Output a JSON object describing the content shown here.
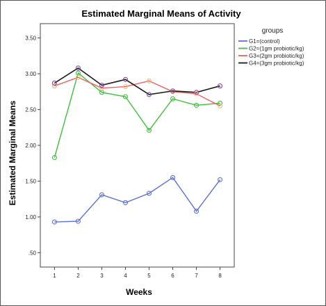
{
  "chart_data": {
    "type": "line",
    "title": "Estimated Marginal Means of Activity",
    "xlabel": "Weeks",
    "ylabel": "Estimated Marginal Means",
    "x": [
      1,
      2,
      3,
      4,
      5,
      6,
      7,
      8
    ],
    "x_tick_labels": [
      "1",
      "2",
      "3",
      "4",
      "5",
      "6",
      "7",
      "8"
    ],
    "xlim": [
      0.4,
      8.6
    ],
    "ylim": [
      0.3,
      3.7
    ],
    "y_ticks": [
      0.5,
      1.0,
      1.5,
      2.0,
      2.5,
      3.0,
      3.5
    ],
    "y_tick_labels": [
      ".50",
      "1.00",
      "1.50",
      "2.00",
      "2.50",
      "3.00",
      "3.50"
    ],
    "grid": false,
    "legend_title": "groups",
    "legend_position": "right",
    "series": [
      {
        "name": "G1=(control)",
        "color": "#5b6fd6",
        "marker_color": "#5b6fd6",
        "values": [
          0.93,
          0.94,
          1.31,
          1.2,
          1.33,
          1.55,
          1.08,
          1.52
        ]
      },
      {
        "name": "G2=(1gm probiotic/kg)",
        "color": "#3cc13c",
        "marker_color": "#3cc13c",
        "values": [
          1.83,
          3.01,
          2.74,
          2.68,
          2.21,
          2.65,
          2.56,
          2.59
        ]
      },
      {
        "name": "G3=(2gm probiotic/kg)",
        "color": "#f0605a",
        "marker_color": "#e8c07a",
        "values": [
          2.83,
          2.95,
          2.8,
          2.82,
          2.9,
          2.75,
          2.72,
          2.55
        ]
      },
      {
        "name": "G4=(3gm probiotic/kg)",
        "color": "#1a1a1a",
        "marker_color": "#8a3fb0",
        "values": [
          2.87,
          3.08,
          2.84,
          2.92,
          2.71,
          2.76,
          2.74,
          2.83
        ]
      }
    ]
  }
}
